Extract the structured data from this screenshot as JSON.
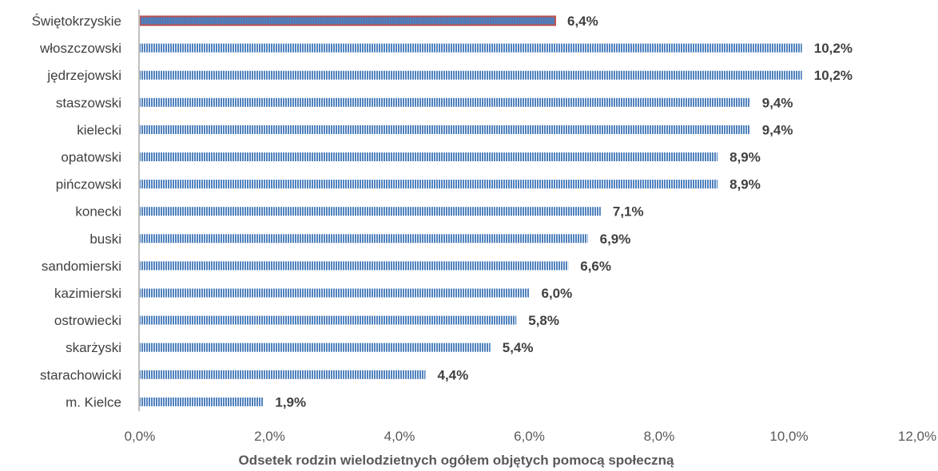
{
  "chart_data": {
    "type": "bar",
    "orientation": "horizontal",
    "categories": [
      "Świętokrzyskie",
      "włoszczowski",
      "jędrzejowski",
      "staszowski",
      "kielecki",
      "opatowski",
      "pińczowski",
      "konecki",
      "buski",
      "sandomierski",
      "kazimierski",
      "ostrowiecki",
      "skarżyski",
      "starachowicki",
      "m. Kielce"
    ],
    "values": [
      6.4,
      10.2,
      10.2,
      9.4,
      9.4,
      8.9,
      8.9,
      7.1,
      6.9,
      6.6,
      6.0,
      5.8,
      5.4,
      4.4,
      1.9
    ],
    "value_labels": [
      "6,4%",
      "10,2%",
      "10,2%",
      "9,4%",
      "9,4%",
      "8,9%",
      "8,9%",
      "7,1%",
      "6,9%",
      "6,6%",
      "6,0%",
      "5,8%",
      "5,4%",
      "4,4%",
      "1,9%"
    ],
    "highlight_index": 0,
    "xlim": [
      0,
      12
    ],
    "x_ticks": [
      "0,0%",
      "2,0%",
      "4,0%",
      "6,0%",
      "8,0%",
      "10,0%",
      "12,0%"
    ],
    "xlabel": "Odsetek rodzin wielodzietnych ogółem objętych pomocą społeczną",
    "ylabel": "",
    "title": "",
    "grid": false,
    "colors": {
      "bar": "#4f81bd",
      "highlight": "#c0504d",
      "axis": "#bfbfbf"
    }
  }
}
